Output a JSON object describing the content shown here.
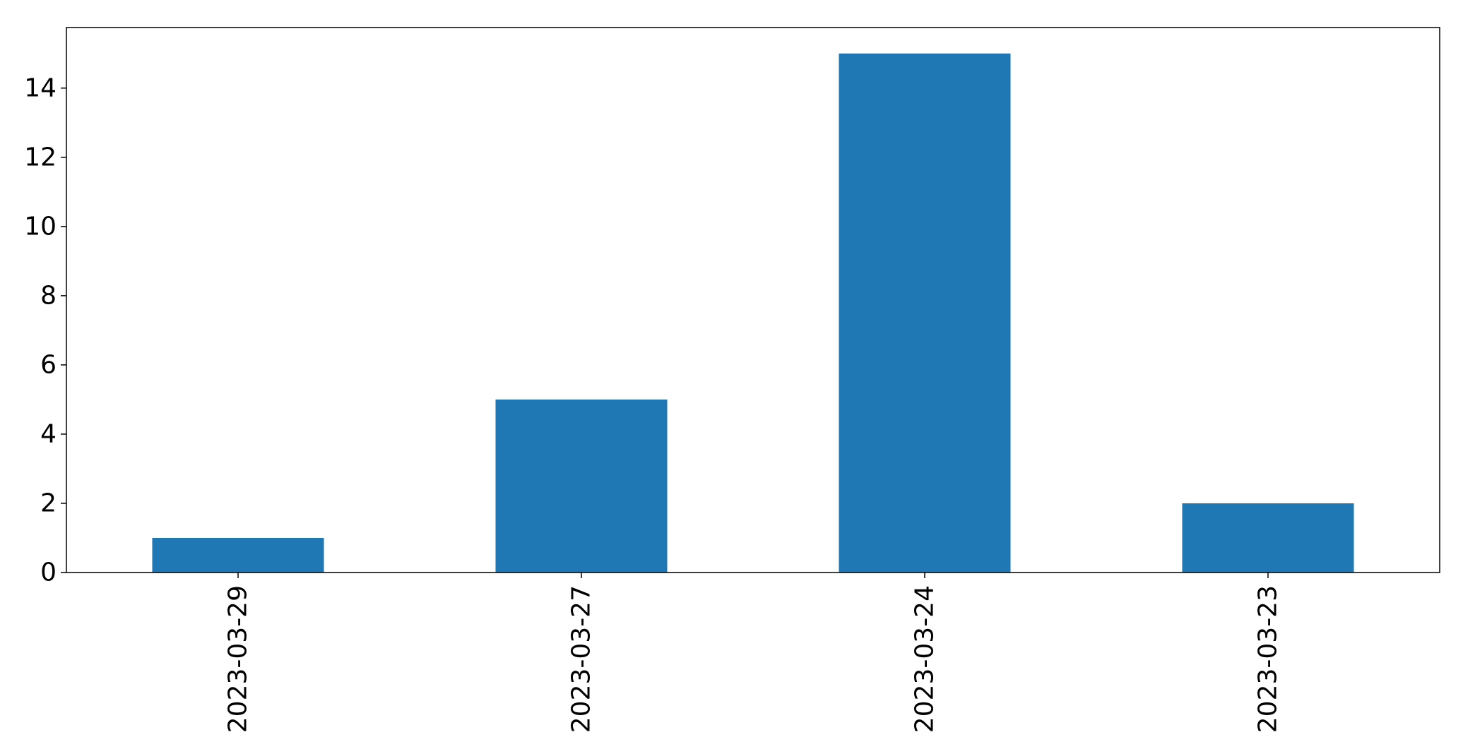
{
  "chart_data": {
    "type": "bar",
    "title": "",
    "xlabel": "",
    "ylabel": "",
    "categories": [
      "2023-03-29",
      "2023-03-27",
      "2023-03-24",
      "2023-03-23"
    ],
    "values": [
      1,
      5,
      15,
      2
    ],
    "ylim": [
      0,
      15.75
    ],
    "yticks": [
      0,
      2,
      4,
      6,
      8,
      10,
      12,
      14
    ],
    "x_tick_rotation": "vertical",
    "grid": false,
    "legend": "none",
    "bar_color": "#1f77b4"
  }
}
